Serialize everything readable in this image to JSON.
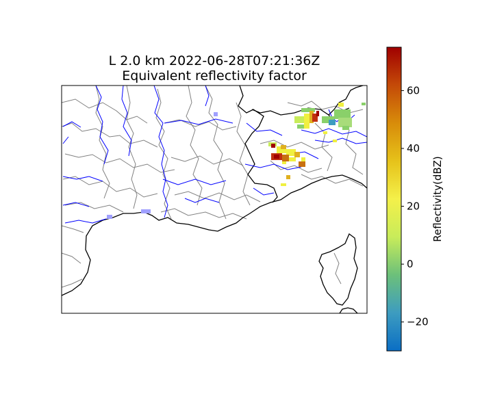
{
  "title": {
    "line1": "L 2.0 km 2022-06-28T07:21:36Z",
    "line2": "Equivalent reflectivity factor"
  },
  "colorbar": {
    "label": "Reflectivity(dBZ)",
    "range": [
      -30,
      75
    ],
    "ticks": [
      {
        "value": 60,
        "label": "60"
      },
      {
        "value": 40,
        "label": "40"
      },
      {
        "value": 20,
        "label": "20"
      },
      {
        "value": 0,
        "label": "0"
      },
      {
        "value": -20,
        "label": "−20"
      }
    ],
    "gradient_colors": [
      "#0a6ec4",
      "#3d9cc0",
      "#6cc07a",
      "#c8ec5a",
      "#f4f04a",
      "#e6c21a",
      "#d88c0a",
      "#c44a08",
      "#a00000"
    ]
  },
  "map": {
    "coastline_color": "#000000",
    "border_color": "#000000",
    "region_border_color": "#808080",
    "river_color": "#0000ff",
    "echo_colors": [
      "#a0a0ff",
      "#8ad06a",
      "#f0f040",
      "#e0b020",
      "#c87010",
      "#c03010",
      "#a00000"
    ]
  }
}
